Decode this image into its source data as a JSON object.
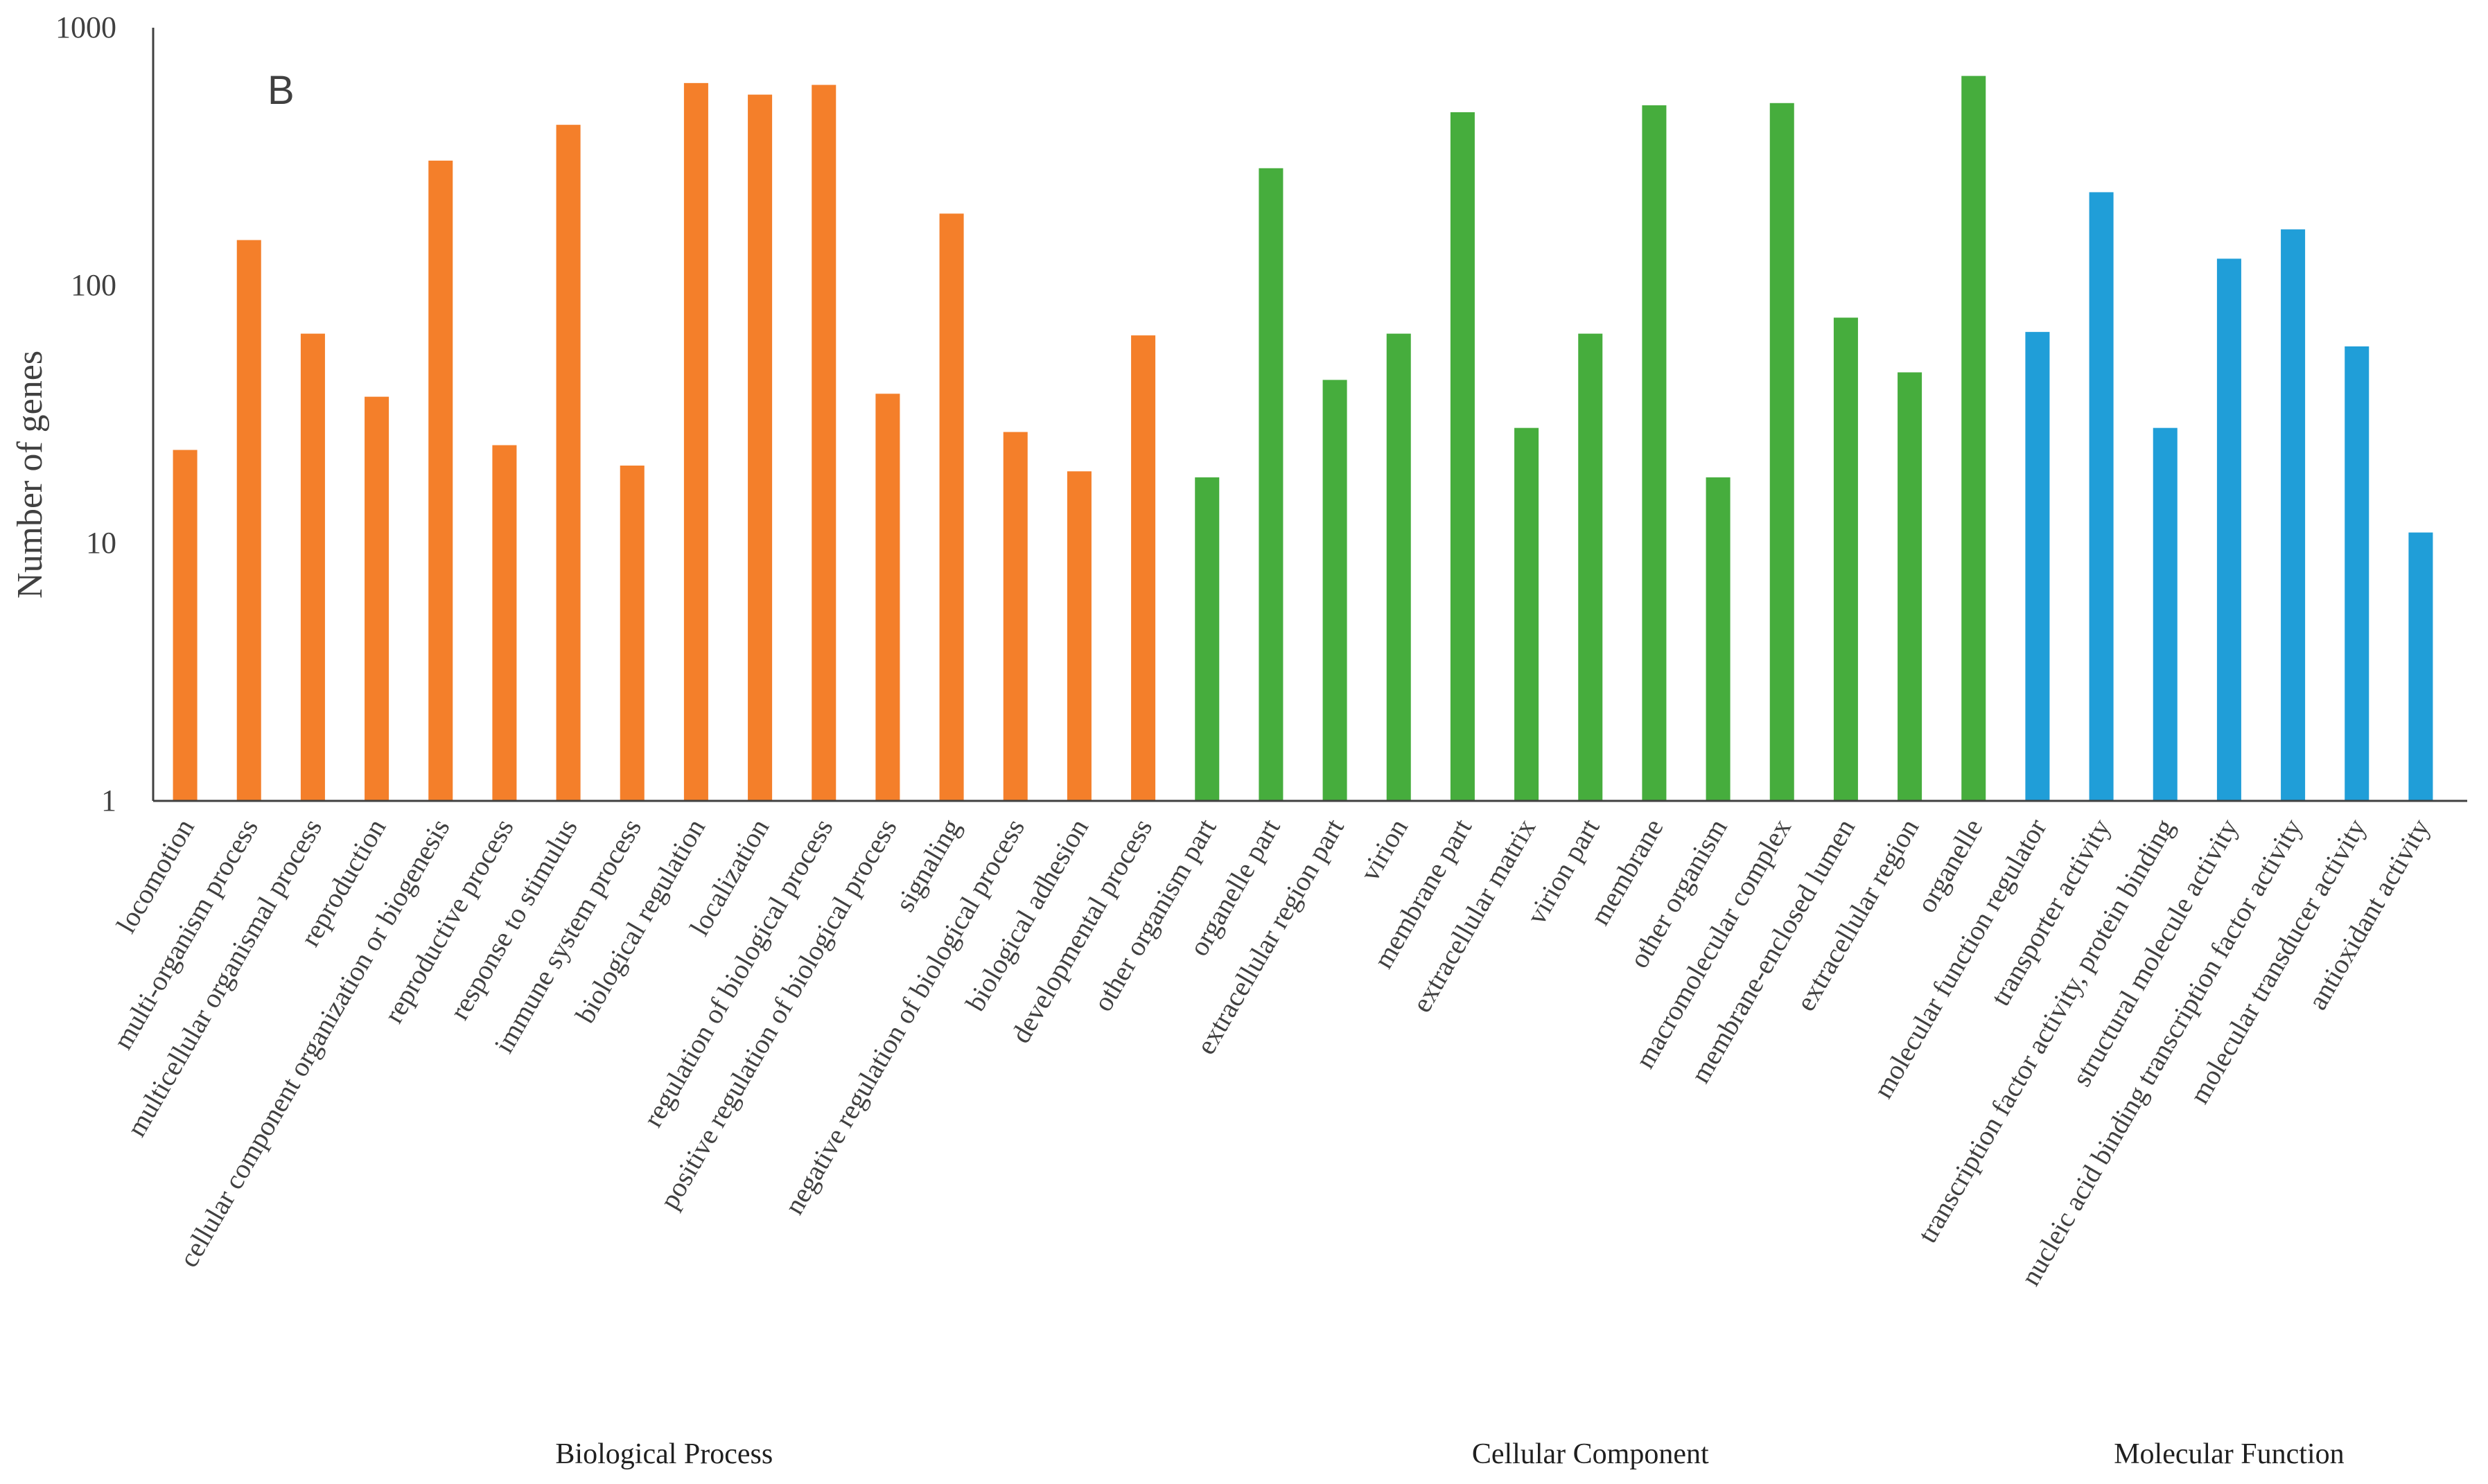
{
  "chart_data": {
    "type": "bar",
    "panel_label": "B",
    "ylabel": "Number of  genes",
    "yscale": "log",
    "ylim": [
      1,
      1000
    ],
    "yticks": [
      "1",
      "10",
      "100",
      "1000"
    ],
    "colors": {
      "Biological Process": "#F47F2A",
      "Cellular Component": "#46AD3D",
      "Molecular Function": "#209ED8"
    },
    "groups": [
      {
        "name": "Biological Process",
        "categories": [
          "locomotion",
          "multi-organism process",
          "multicellular organismal process",
          "reproduction",
          "cellular component organization or biogenesis",
          "reproductive process",
          "response to stimulus",
          "immune system process",
          "biological regulation",
          "localization",
          "regulation of biological process",
          "positive regulation of biological process",
          "signaling",
          "negative regulation of biological process",
          "biological adhesion",
          "developmental process"
        ],
        "values": [
          23,
          150,
          65,
          37,
          305,
          24,
          420,
          20,
          610,
          550,
          600,
          38,
          190,
          27,
          19,
          64
        ]
      },
      {
        "name": "Cellular Component",
        "categories": [
          "other organism part",
          "organelle part",
          "extracellular region part",
          "virion",
          "membrane part",
          "extracellular matrix",
          "virion part",
          "membrane",
          "other organism",
          "macromolecular complex",
          "membrane-enclosed lumen",
          "extracellular region",
          "organelle"
        ],
        "values": [
          18,
          285,
          43,
          65,
          470,
          28,
          65,
          500,
          18,
          510,
          75,
          46,
          650
        ]
      },
      {
        "name": "Molecular Function",
        "categories": [
          "molecular function regulator",
          "transporter activity",
          "transcription factor activity, protein binding",
          "structural molecule activity",
          "nucleic acid binding transcription factor activity",
          "molecular transducer activity",
          "antioxidant activity"
        ],
        "values": [
          66,
          230,
          28,
          127,
          165,
          58,
          11
        ]
      }
    ]
  }
}
